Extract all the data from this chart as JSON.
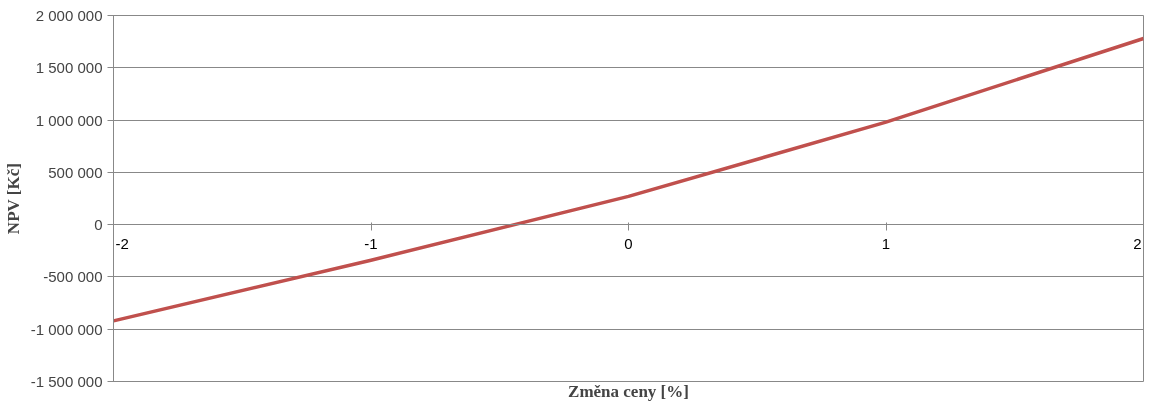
{
  "chart_data": {
    "type": "line",
    "xlabel": "Změna ceny [%]",
    "ylabel": "NPV [Kč]",
    "x": [
      -2,
      -1,
      0,
      1,
      2
    ],
    "series": [
      {
        "color": "#c0504d",
        "values": [
          -920000,
          -340000,
          270000,
          980000,
          1780000
        ]
      }
    ],
    "xlim": [
      -2,
      2
    ],
    "xticks": [
      -2,
      -1,
      0,
      1,
      2
    ],
    "ylim": [
      -1500000,
      2000000
    ],
    "yticks": [
      {
        "value": -1500000,
        "label": "-1 500 000"
      },
      {
        "value": -1000000,
        "label": "-1 000 000"
      },
      {
        "value": -500000,
        "label": "-500 000"
      },
      0,
      {
        "value": 500000,
        "label": "500 000"
      },
      {
        "value": 1000000,
        "label": "1 000 000"
      },
      {
        "value": 1500000,
        "label": "1 500 000"
      },
      {
        "value": 2000000,
        "label": "2 000 000"
      }
    ],
    "grid": "y",
    "marker": "none",
    "line_style": "solid"
  }
}
